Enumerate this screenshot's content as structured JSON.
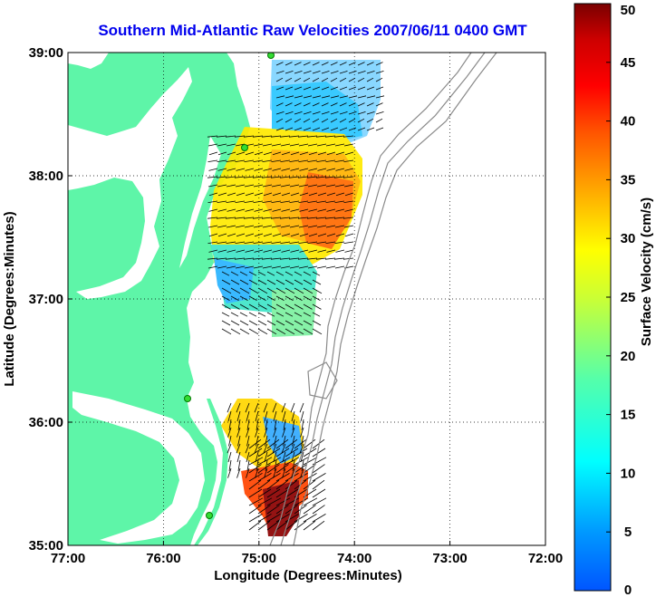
{
  "title": "Southern Mid-Atlantic Raw Velocities 2007/06/11 0400 GMT",
  "map": {
    "xlabel": "Longitude (Degrees:Minutes)",
    "ylabel": "Latitude (Degrees:Minutes)",
    "lon_range": [
      -77,
      -72
    ],
    "lat_range": [
      35,
      39
    ],
    "lon_ticks": [
      {
        "lon": -77,
        "label": "77:00"
      },
      {
        "lon": -76,
        "label": "76:00"
      },
      {
        "lon": -75,
        "label": "75:00"
      },
      {
        "lon": -74,
        "label": "74:00"
      },
      {
        "lon": -73,
        "label": "73:00"
      },
      {
        "lon": -72,
        "label": "72:00"
      }
    ],
    "lat_ticks": [
      {
        "lat": 39,
        "label": "39:00"
      },
      {
        "lat": 38,
        "label": "38:00"
      },
      {
        "lat": 37,
        "label": "37:00"
      },
      {
        "lat": 36,
        "label": "36:00"
      },
      {
        "lat": 35,
        "label": "35:00"
      }
    ],
    "grid": "dotted",
    "land_color": "#5ef5a8",
    "water_color": "#ffffff",
    "station_color": "#22dd22"
  },
  "colorbar": {
    "label": "Surface Velocity (cm/s)",
    "min": 0,
    "max": 50,
    "ticks": [
      {
        "value": 50,
        "label": "50"
      },
      {
        "value": 45,
        "label": "45"
      },
      {
        "value": 40,
        "label": "40"
      },
      {
        "value": 35,
        "label": "35"
      },
      {
        "value": 30,
        "label": "30"
      },
      {
        "value": 25,
        "label": "25"
      },
      {
        "value": 20,
        "label": "20"
      },
      {
        "value": 15,
        "label": "15"
      },
      {
        "value": 10,
        "label": "10"
      },
      {
        "value": 5,
        "label": "5"
      },
      {
        "value": 0,
        "label": "0"
      }
    ]
  }
}
